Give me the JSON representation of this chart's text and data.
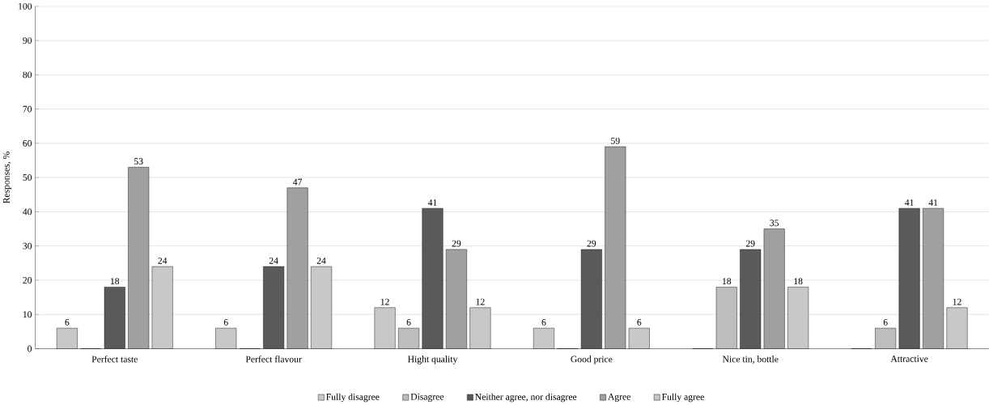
{
  "chart_data": {
    "type": "bar",
    "ylabel": "Responses, %",
    "categories": [
      "Perfect taste",
      "Perfect flavour",
      "Hight quality",
      "Good price",
      "Nice tin, bottle",
      "Attractive"
    ],
    "series": [
      {
        "name": "Fully disagree",
        "color": "#c8c8c8",
        "values": [
          6,
          6,
          12,
          6,
          0,
          0
        ],
        "value_labels": [
          "6",
          "6",
          "12",
          "6",
          null,
          null
        ]
      },
      {
        "name": "Disagree",
        "color": "#bdbdbd",
        "values": [
          0,
          0,
          6,
          0,
          18,
          6
        ],
        "value_labels": [
          null,
          null,
          "6",
          null,
          "18",
          "6"
        ]
      },
      {
        "name": "Neither agree, nor disagree",
        "color": "#5a5a5a",
        "values": [
          18,
          24,
          41,
          29,
          29,
          41
        ],
        "value_labels": [
          "18",
          "24",
          "41",
          "29",
          "29",
          "41"
        ]
      },
      {
        "name": "Agree",
        "color": "#a0a0a0",
        "values": [
          53,
          47,
          29,
          59,
          35,
          41
        ],
        "value_labels": [
          "53",
          "47",
          "29",
          "59",
          "35",
          "41"
        ]
      },
      {
        "name": "Fully agree",
        "color": "#c8c8c8",
        "values": [
          24,
          24,
          12,
          6,
          18,
          12
        ],
        "value_labels": [
          "24",
          "24",
          "12",
          "6",
          "18",
          "12"
        ]
      }
    ],
    "ylim": [
      0,
      100
    ],
    "yticks": [
      0,
      10,
      20,
      30,
      40,
      50,
      60,
      70,
      80,
      90,
      100
    ],
    "grid": "y",
    "legend": "bottom"
  }
}
